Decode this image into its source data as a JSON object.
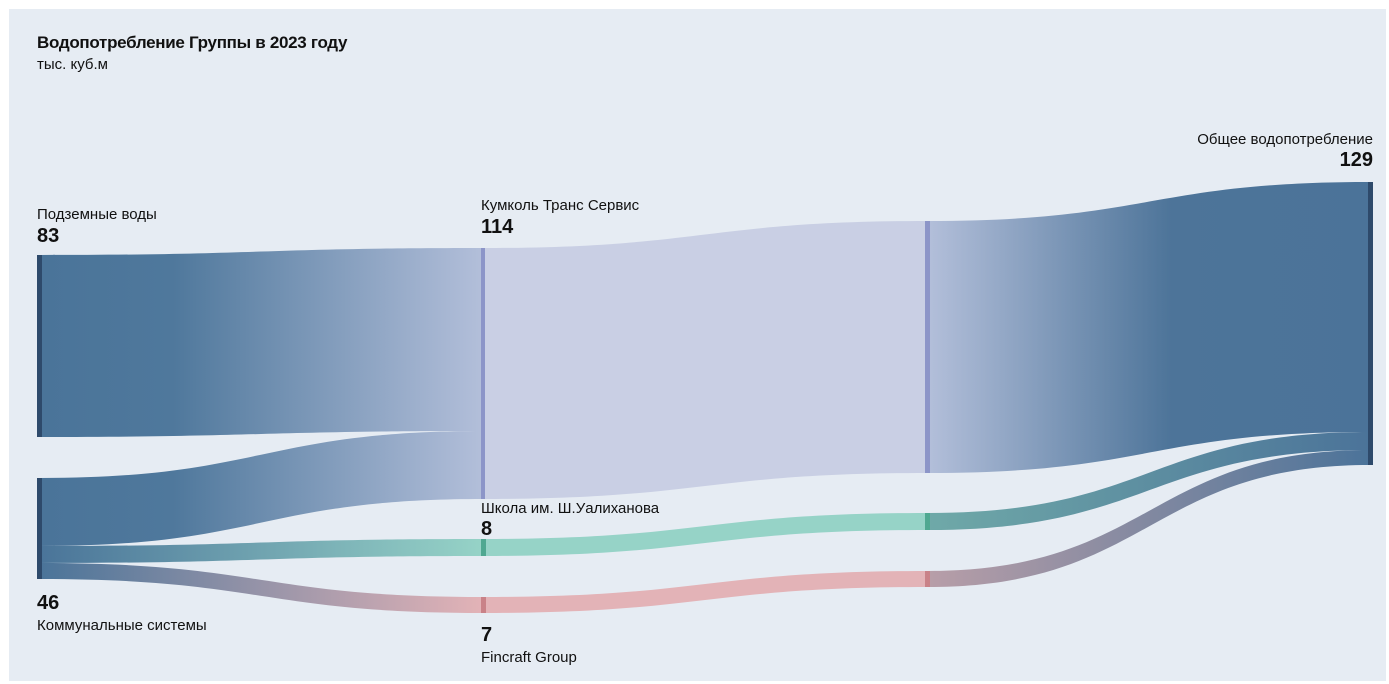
{
  "chart_data": {
    "type": "sankey",
    "title": "Водопотребление Группы в 2023 году",
    "subtitle": "тыс. куб.м",
    "nodes": [
      {
        "id": "groundwater",
        "label": "Подземные воды",
        "value": 83,
        "display_value": "83"
      },
      {
        "id": "utilities",
        "label": "Коммунальные системы",
        "value": 46,
        "display_value": "46"
      },
      {
        "id": "kumkol",
        "label": "Кумколь Транс Сервис",
        "value": 114,
        "display_value": "114"
      },
      {
        "id": "school",
        "label": "Школа им. Ш.Уалиханова",
        "value": 8,
        "display_value": "8"
      },
      {
        "id": "fincraft",
        "label": "Fincraft Group",
        "value": 7,
        "display_value": "7"
      },
      {
        "id": "total",
        "label": "Общее водопотребление",
        "value": 129,
        "display_value": "129"
      }
    ],
    "links": [
      {
        "source": "groundwater",
        "target": "kumkol",
        "value": 83
      },
      {
        "source": "utilities",
        "target": "kumkol",
        "value": 31
      },
      {
        "source": "utilities",
        "target": "school",
        "value": 8
      },
      {
        "source": "utilities",
        "target": "fincraft",
        "value": 7
      },
      {
        "source": "kumkol",
        "target": "total",
        "value": 114
      },
      {
        "source": "school",
        "target": "total",
        "value": 8
      },
      {
        "source": "fincraft",
        "target": "total",
        "value": 7
      }
    ],
    "colors": {
      "background": "#e6ecf3",
      "source_flow": "#4a7499",
      "source_node": "#2e4a6b",
      "kumkol": "#c9cfe4",
      "kumkol_node": "#8c95c8",
      "school": "#96d3c7",
      "school_node": "#4fa891",
      "fincraft": "#e3b3b7",
      "fincraft_node": "#c98288",
      "total_flow": "#4b7399"
    }
  }
}
